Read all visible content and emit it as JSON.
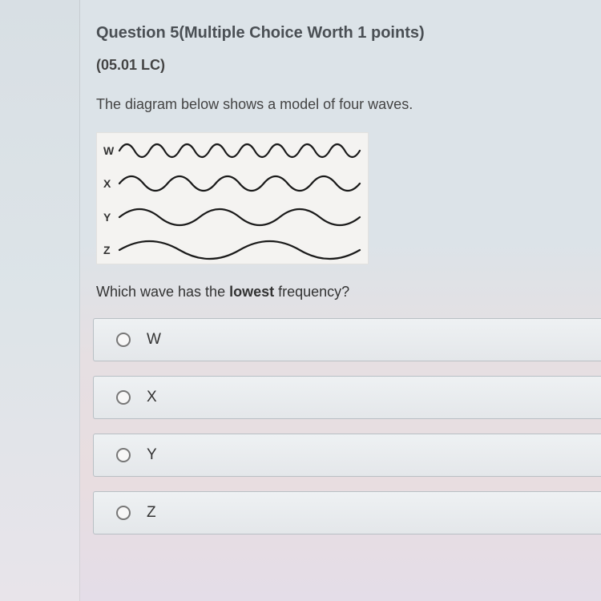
{
  "header": {
    "question_word": "Question",
    "number": "5",
    "meta": "(Multiple Choice Worth 1 points)"
  },
  "code": "(05.01 LC)",
  "prompt": "The diagram below shows a model of four waves.",
  "waves": {
    "box_bg": "#f4f3f1",
    "box_border": "#e2e1df",
    "stroke_color": "#1a1a1a",
    "stroke_width": 2.2,
    "rows": [
      {
        "label": "W",
        "cycles": 8,
        "amplitude": 8
      },
      {
        "label": "X",
        "cycles": 5,
        "amplitude": 9
      },
      {
        "label": "Y",
        "cycles": 3,
        "amplitude": 10
      },
      {
        "label": "Z",
        "cycles": 2,
        "amplitude": 11
      }
    ]
  },
  "subprompt_pre": "Which wave has the ",
  "subprompt_kw": "lowest",
  "subprompt_post": " frequency?",
  "options": [
    {
      "label": "W"
    },
    {
      "label": "X"
    },
    {
      "label": "Y"
    },
    {
      "label": "Z"
    }
  ],
  "colors": {
    "page_bg_top": "#dce3e8",
    "page_bg_bottom": "#e4dde8",
    "option_bg_top": "#eef1f3",
    "option_bg_bottom": "#e4e7ea",
    "option_border": "#b8bfc4",
    "radio_border": "#777777",
    "text": "#3a3f44"
  }
}
